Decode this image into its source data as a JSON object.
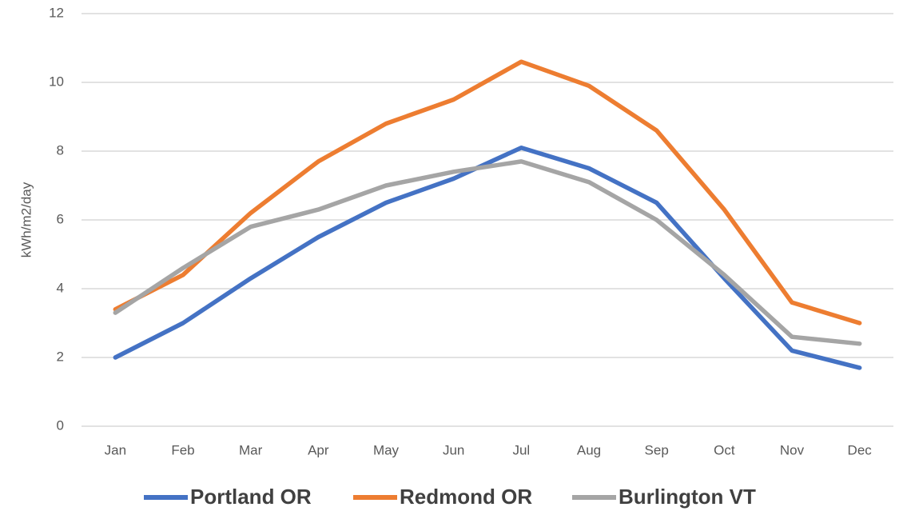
{
  "chart_data": {
    "type": "line",
    "ylabel": "kWh/m2/day",
    "categories": [
      "Jan",
      "Feb",
      "Mar",
      "Apr",
      "May",
      "Jun",
      "Jul",
      "Aug",
      "Sep",
      "Oct",
      "Nov",
      "Dec"
    ],
    "series": [
      {
        "name": "Portland OR",
        "color": "#4472c4",
        "values": [
          2.0,
          3.0,
          4.3,
          5.5,
          6.5,
          7.2,
          8.1,
          7.5,
          6.5,
          4.3,
          2.2,
          1.7
        ]
      },
      {
        "name": "Redmond OR",
        "color": "#ed7d31",
        "values": [
          3.4,
          4.4,
          6.2,
          7.7,
          8.8,
          9.5,
          10.6,
          9.9,
          8.6,
          6.3,
          3.6,
          3.0
        ]
      },
      {
        "name": "Burlington VT",
        "color": "#a5a5a5",
        "values": [
          3.3,
          4.6,
          5.8,
          6.3,
          7.0,
          7.4,
          7.7,
          7.1,
          6.0,
          4.4,
          2.6,
          2.4
        ]
      }
    ],
    "ylim": [
      0,
      12
    ],
    "yticks": [
      0,
      2,
      4,
      6,
      8,
      10,
      12
    ],
    "grid": true,
    "legend": "bottom"
  }
}
